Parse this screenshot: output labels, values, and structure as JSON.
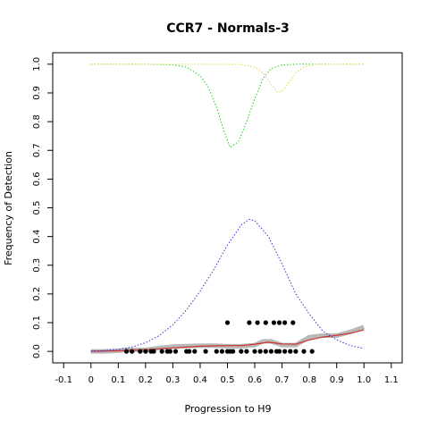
{
  "chart_data": {
    "type": "scatter",
    "title": "CCR7 - Normals-3",
    "xlabel": "Progression to H9",
    "ylabel": "Frequency of Detection",
    "xlim": [
      -0.14,
      1.14
    ],
    "ylim": [
      -0.04,
      1.04
    ],
    "xticks": [
      "-0.1",
      "0",
      "0.1",
      "0.2",
      "0.3",
      "0.4",
      "0.5",
      "0.6",
      "0.7",
      "0.8",
      "0.9",
      "1.0",
      "1.1"
    ],
    "xtick_values": [
      -0.1,
      0.0,
      0.1,
      0.2,
      0.3,
      0.4,
      0.5,
      0.6,
      0.7,
      0.8,
      0.9,
      1.0,
      1.1
    ],
    "yticks": [
      "0.0",
      "0.1",
      "0.2",
      "0.3",
      "0.4",
      "0.5",
      "0.6",
      "0.7",
      "0.8",
      "0.9",
      "1.0"
    ],
    "ytick_values": [
      0.0,
      0.1,
      0.2,
      0.3,
      0.4,
      0.5,
      0.6,
      0.7,
      0.8,
      0.9,
      1.0
    ],
    "grid": false,
    "series": [
      {
        "style": "points",
        "color": "#000000",
        "x": [
          0.13,
          0.15,
          0.18,
          0.2,
          0.22,
          0.23,
          0.26,
          0.28,
          0.29,
          0.31,
          0.35,
          0.36,
          0.38,
          0.42,
          0.46,
          0.48,
          0.5,
          0.51,
          0.52,
          0.55,
          0.57,
          0.6,
          0.62,
          0.64,
          0.66,
          0.68,
          0.69,
          0.71,
          0.73,
          0.75,
          0.78,
          0.81,
          0.5,
          0.58,
          0.61,
          0.64,
          0.67,
          0.69,
          0.71,
          0.74
        ],
        "y": [
          0,
          0,
          0,
          0,
          0,
          0,
          0,
          0,
          0,
          0,
          0,
          0,
          0,
          0,
          0,
          0,
          0,
          0,
          0,
          0,
          0,
          0,
          0,
          0,
          0,
          0,
          0,
          0,
          0,
          0,
          0,
          0,
          0.1,
          0.1,
          0.1,
          0.1,
          0.1,
          0.1,
          0.1,
          0.1
        ]
      },
      {
        "style": "thick-line",
        "color": "#b8b8b8",
        "x": [
          0.0,
          0.05,
          0.1,
          0.13,
          0.2,
          0.25,
          0.3,
          0.33,
          0.4,
          0.45,
          0.5,
          0.55,
          0.6,
          0.63,
          0.66,
          0.7,
          0.75,
          0.8,
          0.85,
          0.9,
          0.95,
          1.0
        ],
        "y": [
          0.0,
          0.0,
          0.002,
          0.005,
          0.005,
          0.012,
          0.017,
          0.018,
          0.02,
          0.02,
          0.018,
          0.018,
          0.022,
          0.035,
          0.035,
          0.022,
          0.022,
          0.05,
          0.055,
          0.055,
          0.068,
          0.085
        ]
      },
      {
        "style": "line",
        "color": "#d03030",
        "x": [
          0.0,
          0.1,
          0.15,
          0.2,
          0.3,
          0.4,
          0.5,
          0.55,
          0.6,
          0.65,
          0.7,
          0.75,
          0.8,
          0.85,
          0.9,
          0.95,
          1.0
        ],
        "y": [
          0.0,
          0.002,
          0.004,
          0.006,
          0.012,
          0.018,
          0.02,
          0.02,
          0.025,
          0.032,
          0.026,
          0.025,
          0.04,
          0.05,
          0.056,
          0.063,
          0.075
        ]
      },
      {
        "style": "dotted",
        "color": "#3333dd",
        "x": [
          0.0,
          0.05,
          0.1,
          0.15,
          0.2,
          0.25,
          0.3,
          0.35,
          0.4,
          0.45,
          0.5,
          0.55,
          0.58,
          0.6,
          0.65,
          0.7,
          0.75,
          0.8,
          0.85,
          0.9,
          0.95,
          1.0
        ],
        "y": [
          0.001,
          0.003,
          0.007,
          0.015,
          0.03,
          0.055,
          0.092,
          0.145,
          0.21,
          0.285,
          0.37,
          0.44,
          0.46,
          0.455,
          0.4,
          0.305,
          0.2,
          0.13,
          0.07,
          0.04,
          0.02,
          0.01
        ]
      },
      {
        "style": "dotted",
        "color": "#22cc22",
        "x": [
          0.0,
          0.1,
          0.2,
          0.3,
          0.35,
          0.4,
          0.43,
          0.46,
          0.49,
          0.51,
          0.54,
          0.57,
          0.6,
          0.63,
          0.66,
          0.7,
          0.75,
          0.8,
          0.9,
          1.0
        ],
        "y": [
          1.0,
          1.0,
          1.0,
          0.998,
          0.99,
          0.96,
          0.92,
          0.85,
          0.76,
          0.71,
          0.73,
          0.8,
          0.88,
          0.95,
          0.985,
          0.998,
          1.0,
          1.0,
          1.0,
          1.0
        ]
      },
      {
        "style": "dotted",
        "color": "#dddd44",
        "x": [
          0.0,
          0.2,
          0.4,
          0.55,
          0.6,
          0.63,
          0.66,
          0.68,
          0.7,
          0.72,
          0.75,
          0.78,
          0.82,
          0.9,
          1.0
        ],
        "y": [
          1.0,
          1.0,
          1.0,
          0.999,
          0.99,
          0.97,
          0.93,
          0.905,
          0.905,
          0.93,
          0.97,
          0.99,
          0.999,
          1.0,
          1.0
        ]
      }
    ]
  }
}
